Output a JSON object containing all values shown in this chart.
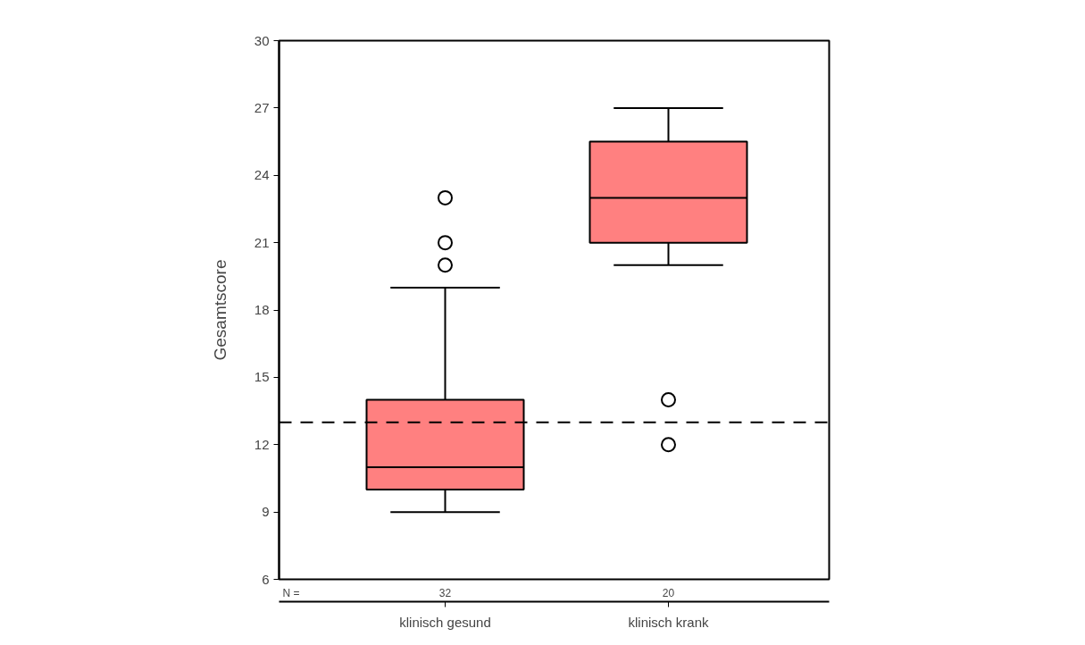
{
  "chart_data": {
    "type": "box",
    "ylabel": "Gesamtscore",
    "categories": [
      "klinisch gesund",
      "klinisch krank"
    ],
    "boxes": [
      {
        "low": 9,
        "q1": 10,
        "median": 11,
        "q3": 14,
        "high": 19,
        "outliers": [
          20,
          21,
          23
        ]
      },
      {
        "low": 20,
        "q1": 21,
        "median": 23,
        "q3": 25.5,
        "high": 27,
        "outliers": [
          14,
          12
        ]
      }
    ],
    "color": "#ff8080",
    "ylim": [
      6,
      30
    ],
    "yticks": [
      6,
      9,
      12,
      15,
      18,
      21,
      24,
      27,
      30
    ],
    "ref_lines": [
      {
        "axis": "y",
        "value": 13,
        "line_style": "dashed"
      }
    ],
    "annotations": [
      "N =",
      "32",
      "20"
    ],
    "grid": false,
    "marker": "circle"
  }
}
